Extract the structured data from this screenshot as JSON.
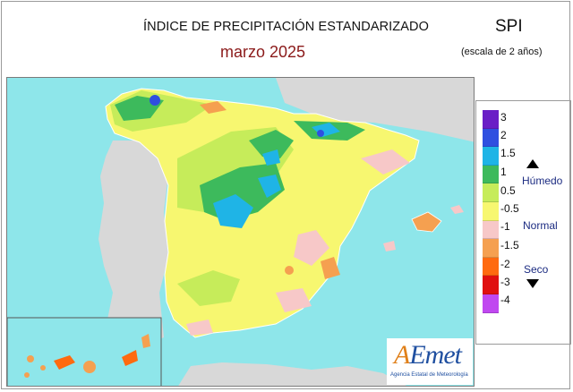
{
  "header": {
    "title": "ÍNDICE DE PRECIPITACIÓN ESTANDARIZADO",
    "subtitle": "marzo  2025",
    "index_name": "SPI",
    "scale_note": "(escala de 2 años)"
  },
  "legend": {
    "ticks": [
      "3",
      "2",
      "1.5",
      "1",
      "0.5",
      "-0.5",
      "-1",
      "-1.5",
      "-2",
      "-3",
      "-4"
    ],
    "categories": {
      "wet": "Húmedo",
      "normal": "Normal",
      "dry": "Seco"
    },
    "colors": [
      "#6a1ec6",
      "#2f4fe0",
      "#1fb4e6",
      "#3dba5c",
      "#c6ec5a",
      "#f7f770",
      "#f7c8c8",
      "#f5a050",
      "#ff6a10",
      "#e01010",
      "#c048f0"
    ]
  },
  "map": {
    "sea_color": "#8ee6ea",
    "land_outside_color": "#d8d8d8"
  },
  "logo": {
    "brand_a": "A",
    "brand_rest": "Emet",
    "tagline": "Agencia Estatal de Meteorología"
  }
}
